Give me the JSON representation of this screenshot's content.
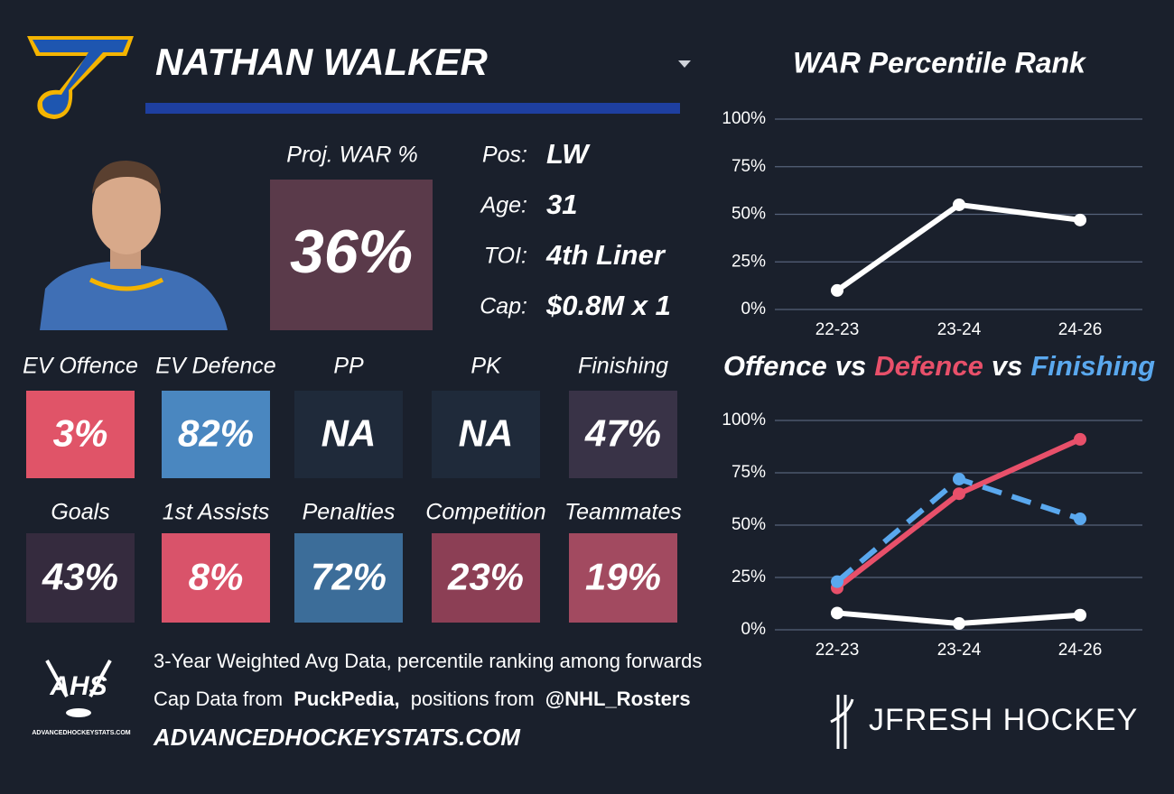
{
  "header": {
    "player": "NATHAN WALKER"
  },
  "projection": {
    "label": "Proj. WAR %",
    "value": "36%",
    "color": "#5a3a4a"
  },
  "info": [
    {
      "label": "Pos:",
      "value": "LW"
    },
    {
      "label": "Age:",
      "value": "31"
    },
    {
      "label": "TOI:",
      "value": "4th Liner"
    },
    {
      "label": "Cap:",
      "value": "$0.8M x 1"
    }
  ],
  "tiles": [
    {
      "label": "EV Offence",
      "value": "3%",
      "color": "#e05468"
    },
    {
      "label": "EV Defence",
      "value": "82%",
      "color": "#4a87c0"
    },
    {
      "label": "PP",
      "value": "NA",
      "color": "#1f2a3a"
    },
    {
      "label": "PK",
      "value": "NA",
      "color": "#1f2a3a"
    },
    {
      "label": "Finishing",
      "value": "47%",
      "color": "#393347"
    },
    {
      "label": "Goals",
      "value": "43%",
      "color": "#352b3e"
    },
    {
      "label": "1st Assists",
      "value": "8%",
      "color": "#d9536a"
    },
    {
      "label": "Penalties",
      "value": "72%",
      "color": "#3c6d99"
    },
    {
      "label": "Competition",
      "value": "23%",
      "color": "#8c3f55"
    },
    {
      "label": "Teammates",
      "value": "19%",
      "color": "#a24a60"
    }
  ],
  "footer": {
    "logo": "AHS",
    "logo_site": "ADVANCEDHOCKEYSTATS.COM",
    "line1": "3-Year Weighted Avg Data, percentile ranking among forwards",
    "line2_a": "Cap Data from",
    "line2_b": "PuckPedia,",
    "line2_c": "positions from",
    "line2_d": "@NHL_Rosters",
    "site": "ADVANCEDHOCKEYSTATS.COM",
    "brand": "JFRESH HOCKEY"
  },
  "chart_data": [
    {
      "type": "line",
      "title": "WAR Percentile Rank",
      "categories": [
        "22-23",
        "23-24",
        "24-26"
      ],
      "series": [
        {
          "name": null,
          "color": "#ffffff",
          "values": [
            10,
            55,
            47
          ]
        }
      ],
      "ylim": [
        0,
        100
      ],
      "yticks": [
        {
          "value": 0,
          "label": "0%"
        },
        {
          "value": 25,
          "label": "25%"
        },
        {
          "value": 50,
          "label": "50%"
        },
        {
          "value": 75,
          "label": "75%"
        },
        {
          "value": 100,
          "label": "100%"
        }
      ],
      "grid": true
    },
    {
      "type": "line",
      "title_separator": "vs",
      "categories": [
        "22-23",
        "23-24",
        "24-26"
      ],
      "series": [
        {
          "name": "Offence",
          "color": "#ffffff",
          "values": [
            8,
            3,
            7
          ]
        },
        {
          "name": "Defence",
          "color": "#e8506a",
          "values": [
            20,
            65,
            91
          ]
        },
        {
          "name": "Finishing",
          "color": "#5aa8ee",
          "values": [
            23,
            72,
            53
          ],
          "dashed": true
        }
      ],
      "ylim": [
        0,
        100
      ],
      "yticks": [
        {
          "value": 0,
          "label": "0%"
        },
        {
          "value": 25,
          "label": "25%"
        },
        {
          "value": 50,
          "label": "50%"
        },
        {
          "value": 75,
          "label": "75%"
        },
        {
          "value": 100,
          "label": "100%"
        }
      ],
      "grid": true
    }
  ]
}
